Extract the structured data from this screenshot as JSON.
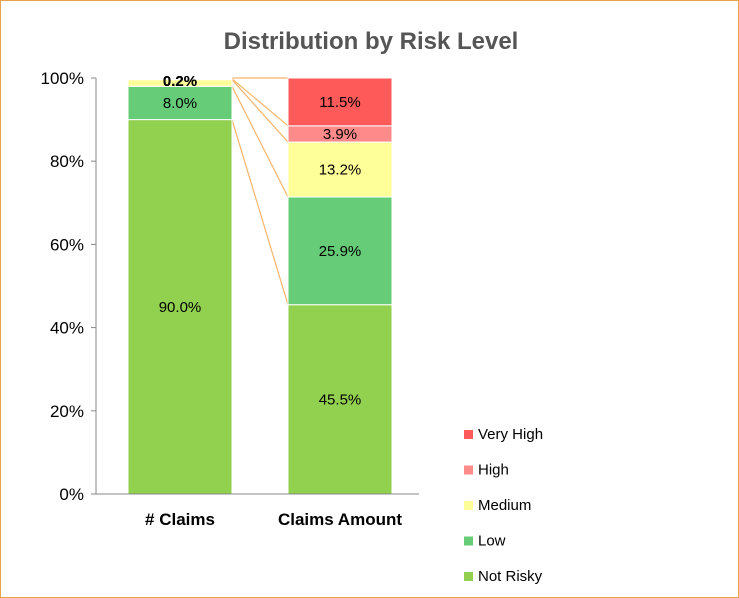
{
  "chart_data": {
    "type": "bar",
    "stacked": true,
    "percent_stacked": true,
    "title": "Distribution by Risk Level",
    "xlabel": "",
    "ylabel": "",
    "ylim": [
      0,
      100
    ],
    "yticks": [
      "0%",
      "20%",
      "40%",
      "60%",
      "80%",
      "100%"
    ],
    "categories": [
      "# Claims",
      "Claims Amount"
    ],
    "series": [
      {
        "name": "Not Risky",
        "color": "#92d050",
        "values": [
          90.0,
          45.5
        ],
        "labels": [
          "90.0%",
          "45.5%"
        ]
      },
      {
        "name": "Low",
        "color": "#66cc77",
        "values": [
          8.0,
          25.9
        ],
        "labels": [
          "8.0%",
          "25.9%"
        ]
      },
      {
        "name": "Medium",
        "color": "#ffff99",
        "values": [
          1.6,
          13.2
        ],
        "labels": [
          "",
          "13.2%"
        ]
      },
      {
        "name": "High",
        "color": "#ff8a8a",
        "values": [
          0.2,
          3.9
        ],
        "labels": [
          "0.2%",
          "3.9%"
        ]
      },
      {
        "name": "Very High",
        "color": "#ff5a5a",
        "values": [
          0.2,
          11.5
        ],
        "labels": [
          "0.2%",
          "11.5%"
        ]
      }
    ],
    "connector_color": "#f5b56a",
    "legend_position": "bottom-right",
    "grid": false
  }
}
